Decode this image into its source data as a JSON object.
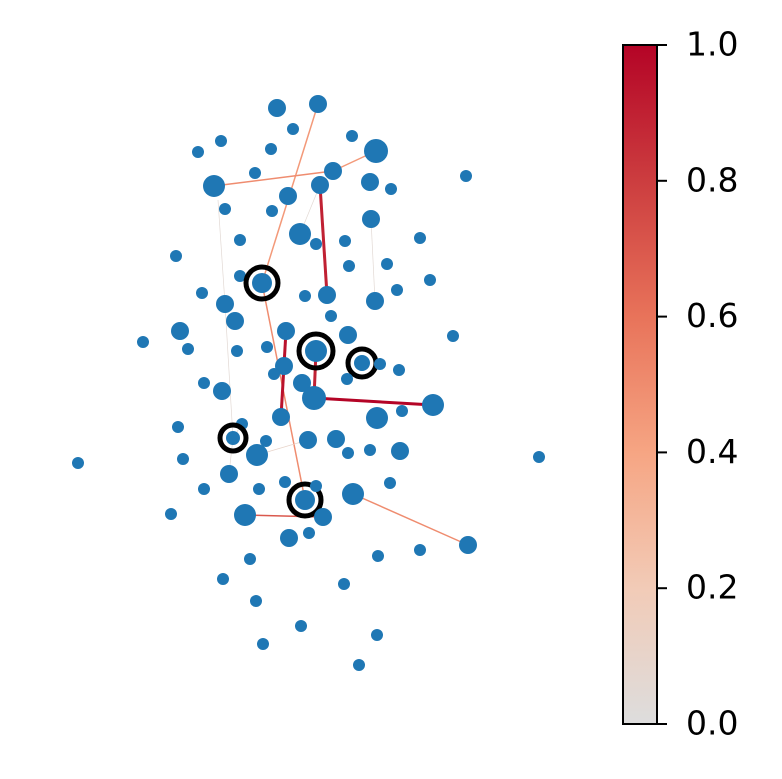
{
  "chart_data": {
    "type": "network",
    "edge_values": [
      0.45,
      0.5,
      0.45,
      0.9,
      0.5,
      0.95,
      0.9,
      1.0,
      0.7,
      0.5,
      0.1,
      0.05,
      0.05,
      0.05,
      0.05,
      0.05,
      0.05
    ],
    "clim": [
      0,
      1
    ],
    "cticks": [
      {
        "value": 0,
        "label": "0.0"
      },
      {
        "value": 0.2,
        "label": "0.2"
      },
      {
        "value": 0.4,
        "label": "0.4"
      },
      {
        "value": 0.6,
        "label": "0.6"
      },
      {
        "value": 0.8,
        "label": "0.8"
      },
      {
        "value": 1,
        "label": "1.0"
      }
    ],
    "colormap": [
      "#dddddd",
      "#f2cbb7",
      "#f6a583",
      "#e8735a",
      "#cc3d3f",
      "#b40426"
    ],
    "node_color": "#1f77b4"
  }
}
